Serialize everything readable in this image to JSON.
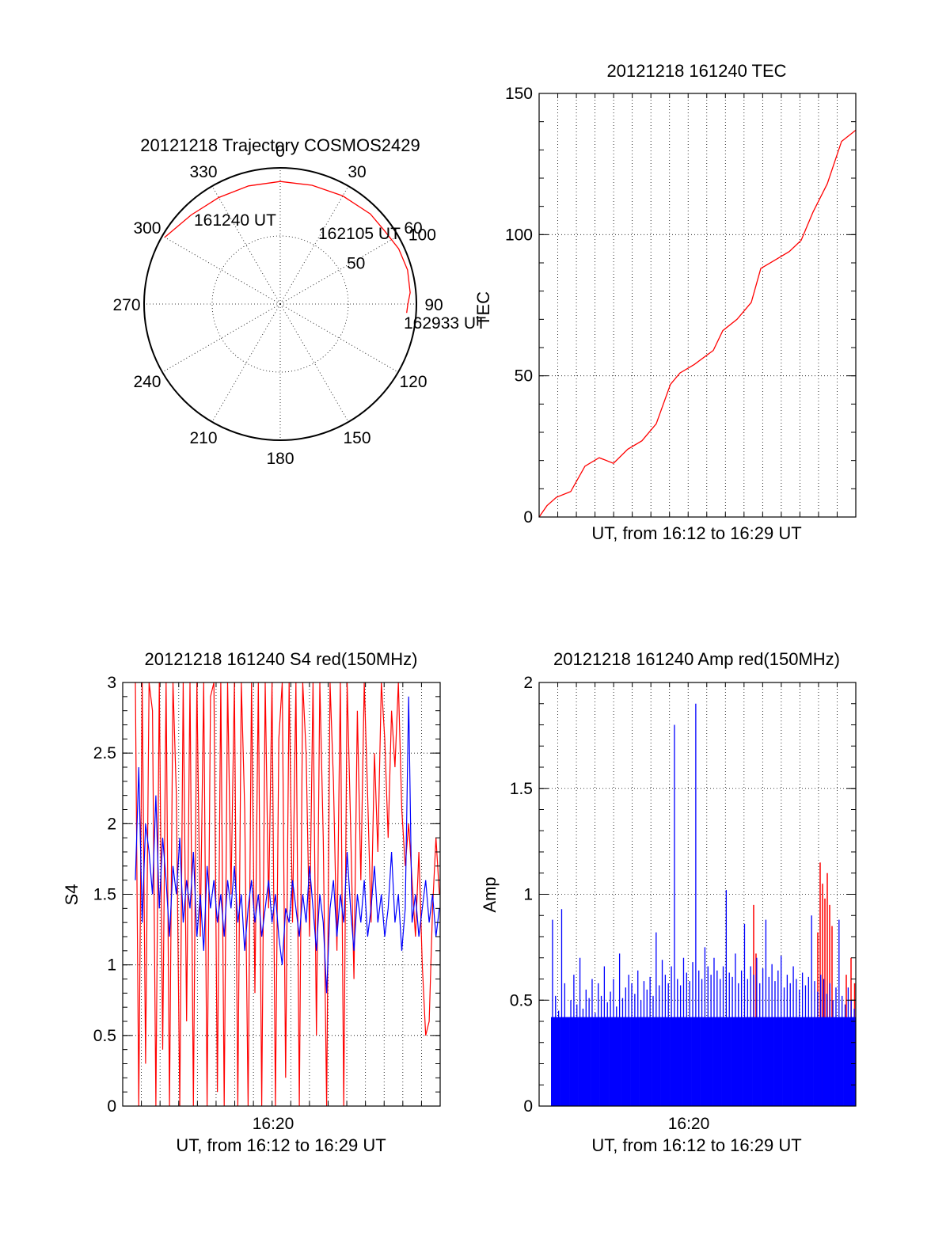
{
  "colors": {
    "red": "#ff0000",
    "blue": "#0000ff",
    "axis": "#000000"
  },
  "chart_data": [
    {
      "type": "polar",
      "title": "20121218 Trajectory COSMOS2429",
      "azimuth_labels": [
        "0",
        "30",
        "60",
        "90",
        "120",
        "150",
        "180",
        "210",
        "240",
        "270",
        "300",
        "330"
      ],
      "radius_labels": [
        "50",
        "100"
      ],
      "rlim": [
        0,
        100
      ],
      "time_labels": [
        "161240 UT",
        "162105 UT",
        "162933 UT"
      ],
      "trajectory": {
        "azimuth_deg": [
          300,
          315,
          330,
          345,
          0,
          15,
          30,
          45,
          55,
          65,
          75,
          85,
          90,
          94
        ],
        "radius": [
          98,
          92.5,
          90.3,
          89.8,
          90.0,
          90.3,
          91.7,
          93.6,
          93.6,
          96.0,
          96.8,
          95.8,
          93.7,
          93.1
        ]
      },
      "grid": true
    },
    {
      "type": "line",
      "title": "20121218 161240 TEC",
      "ylabel": "TEC",
      "xlabel": "UT, from 16:12 to 16:29 UT",
      "ylim": [
        0,
        150
      ],
      "yticks": [
        "0",
        "50",
        "100",
        "150"
      ],
      "xlim_minutes": [
        16.67,
        30.0
      ],
      "series": [
        {
          "x": [
            16.67,
            17.0,
            17.4,
            18.0,
            18.6,
            19.2,
            19.8,
            20.4,
            21.0,
            21.6,
            22.2,
            22.6,
            23.2,
            24.0,
            24.4,
            25.0,
            25.6,
            26.0,
            26.6,
            27.2,
            27.7,
            28.2,
            28.8,
            29.4,
            30.0
          ],
          "values": [
            0,
            4,
            7,
            9,
            18,
            21,
            19,
            24,
            27,
            33,
            47,
            51,
            54,
            59,
            66,
            70,
            76,
            88,
            91,
            94,
            98,
            108,
            118,
            133,
            137
          ]
        }
      ],
      "grid": true
    },
    {
      "type": "line",
      "title": "20121218 161240 S4 red(150MHz)",
      "ylabel": "S4",
      "xlabel": "UT, from 16:12 to 16:29 UT",
      "xtick_label": "16:20",
      "ylim": [
        0,
        3
      ],
      "yticks": [
        "0",
        "0.5",
        "1",
        "1.5",
        "2",
        "2.5",
        "3"
      ],
      "xlim_minutes": [
        16.6,
        29.9
      ],
      "series": [
        {
          "color": "red",
          "values": [
            3,
            0,
            3,
            0.3,
            3,
            2.8,
            0,
            3,
            0.4,
            3,
            0,
            3,
            2.2,
            0,
            3,
            0.6,
            3,
            0,
            3,
            1.2,
            3,
            0,
            2.9,
            3,
            0.1,
            3,
            0,
            3,
            1.5,
            3,
            0,
            3,
            2.1,
            0,
            3,
            0.8,
            3,
            0,
            3,
            1.4,
            3,
            0,
            2.6,
            3,
            0.2,
            3,
            1.3,
            3,
            0,
            3,
            2.5,
            1.2,
            3,
            0.5,
            3,
            1.9,
            0,
            3,
            2.3,
            1.1,
            3,
            0,
            3,
            2.0,
            0.9,
            2.8,
            1.6,
            3,
            2.2,
            1.3,
            2.5,
            1.8,
            3,
            2.6,
            1.9,
            2.8,
            2.4,
            3,
            2.1,
            1.7,
            2.0,
            1.6,
            1.2,
            1.8,
            1.0,
            0.5,
            0.6,
            1.4,
            1.9,
            1.5
          ]
        },
        {
          "color": "blue",
          "values": [
            1.6,
            2.4,
            1.3,
            2.0,
            1.8,
            1.5,
            2.2,
            1.4,
            1.9,
            1.6,
            1.2,
            1.7,
            1.5,
            1.9,
            1.3,
            1.6,
            1.4,
            1.8,
            1.2,
            1.5,
            1.1,
            1.7,
            1.4,
            1.6,
            1.3,
            1.5,
            1.2,
            1.6,
            1.4,
            1.7,
            1.3,
            1.5,
            1.1,
            1.4,
            1.6,
            1.3,
            1.5,
            1.2,
            1.4,
            1.6,
            1.3,
            1.5,
            1.2,
            1.0,
            1.4,
            1.3,
            1.6,
            1.4,
            1.2,
            1.5,
            1.3,
            1.7,
            1.4,
            1.1,
            1.5,
            1.3,
            0.8,
            1.4,
            1.6,
            1.2,
            1.5,
            1.3,
            1.8,
            1.4,
            1.1,
            1.5,
            1.3,
            1.6,
            1.2,
            1.4,
            1.7,
            1.3,
            1.5,
            1.2,
            1.4,
            1.8,
            1.3,
            1.5,
            1.1,
            1.4,
            2.9,
            1.3,
            1.5,
            1.2,
            1.4,
            1.6,
            1.3,
            1.5,
            1.2,
            1.4
          ]
        }
      ],
      "grid": true
    },
    {
      "type": "bar",
      "title": "20121218 161240 Amp red(150MHz)",
      "ylabel": "Amp",
      "xlabel": "UT, from 16:12 to 16:29 UT",
      "xtick_label": "16:20",
      "ylim": [
        0,
        2
      ],
      "yticks": [
        "0",
        "0.5",
        "1",
        "1.5",
        "2"
      ],
      "xlim_minutes": [
        16.67,
        30.0
      ],
      "series": [
        {
          "color": "blue",
          "values": [
            0.88,
            0.52,
            0.45,
            0.93,
            0.58,
            0.42,
            0.5,
            0.62,
            0.48,
            0.7,
            0.46,
            0.55,
            0.51,
            0.6,
            0.44,
            0.58,
            0.52,
            0.66,
            0.49,
            0.54,
            0.6,
            0.47,
            0.72,
            0.51,
            0.56,
            0.62,
            0.58,
            0.53,
            0.64,
            0.5,
            0.59,
            0.55,
            0.61,
            0.52,
            0.82,
            0.57,
            0.69,
            0.62,
            0.58,
            0.66,
            1.8,
            0.6,
            0.57,
            0.7,
            0.63,
            0.59,
            0.68,
            1.9,
            0.64,
            0.6,
            0.75,
            0.66,
            0.62,
            0.7,
            0.64,
            0.6,
            0.66,
            1.02,
            0.63,
            0.61,
            0.72,
            0.58,
            0.64,
            0.86,
            0.6,
            0.66,
            0.62,
            0.7,
            0.58,
            0.65,
            0.88,
            0.61,
            0.67,
            0.59,
            0.64,
            0.71,
            0.56,
            0.62,
            0.58,
            0.66,
            0.6,
            0.55,
            0.63,
            0.57,
            0.61,
            0.9,
            0.59,
            0.54,
            0.62,
            0.6,
            0.53,
            0.58,
            0.5,
            0.56,
            0.88,
            0.52,
            0.48,
            0.56,
            0.5,
            0.46
          ]
        },
        {
          "color": "red",
          "x_minutes": [
            25.7,
            25.8,
            28.4,
            28.5,
            28.6,
            28.7,
            28.8,
            28.9,
            29.0,
            29.6,
            29.8,
            29.95
          ],
          "values": [
            0.95,
            0.72,
            0.82,
            1.15,
            1.05,
            0.98,
            1.1,
            0.95,
            0.85,
            0.62,
            0.7,
            0.58
          ]
        }
      ],
      "grid": true
    }
  ]
}
